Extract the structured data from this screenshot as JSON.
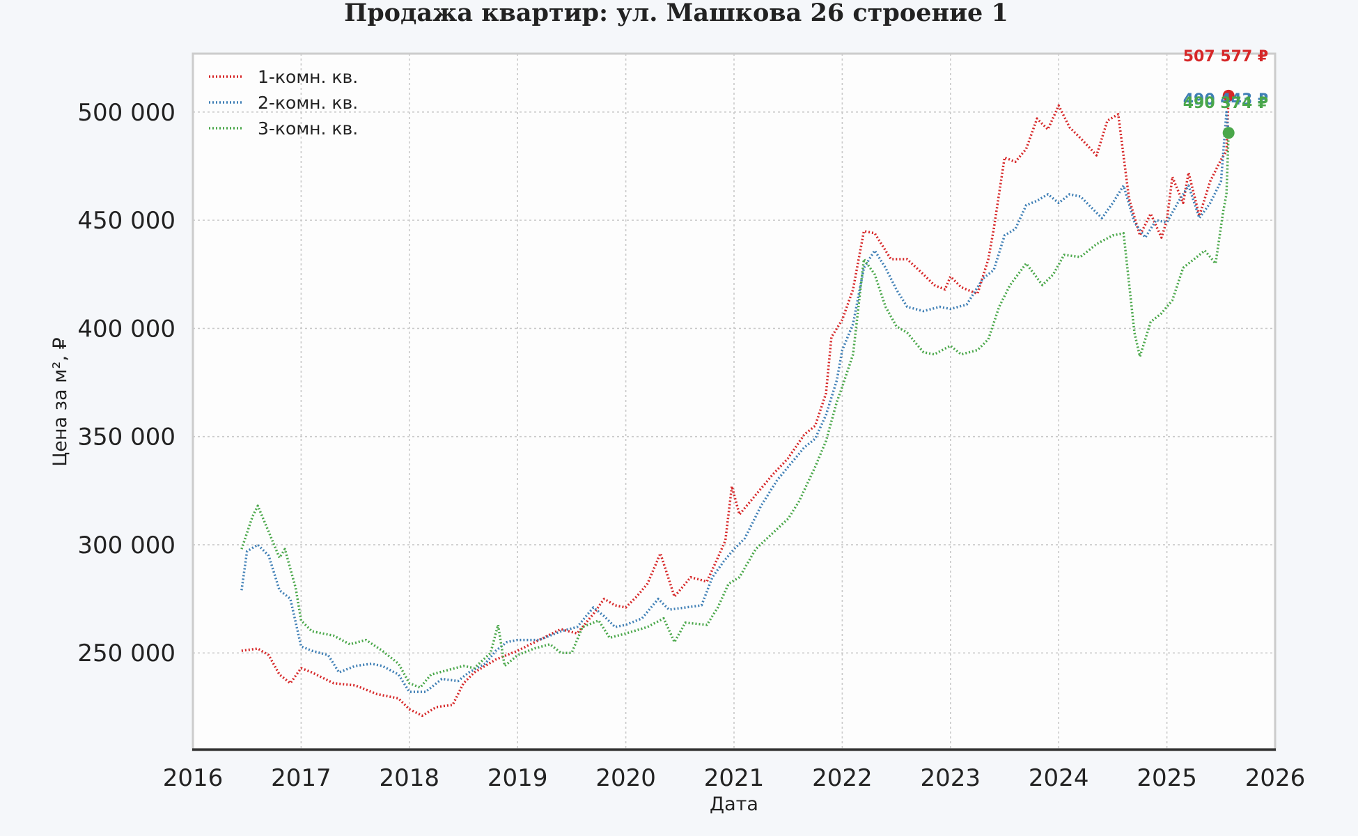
{
  "chart_data": {
    "type": "line",
    "title": "Продажа квартир: ул. Машкова 26 строение 1",
    "xlabel": "Дата",
    "ylabel": "Цена за м², ₽",
    "xlim": [
      2016.0,
      2026.0
    ],
    "ylim": [
      205000,
      527000
    ],
    "x_ticks": [
      2016,
      2017,
      2018,
      2019,
      2020,
      2021,
      2022,
      2023,
      2024,
      2025,
      2026
    ],
    "x_tick_labels": [
      "2016",
      "2017",
      "2018",
      "2019",
      "2020",
      "2021",
      "2022",
      "2023",
      "2024",
      "2025",
      "2026"
    ],
    "y_ticks": [
      250000,
      300000,
      350000,
      400000,
      450000,
      500000
    ],
    "y_tick_labels": [
      "250 000",
      "300 000",
      "350 000",
      "400 000",
      "450 000",
      "500 000"
    ],
    "grid": true,
    "legend_position": "top-left",
    "series": [
      {
        "name": "1-комн. кв.",
        "color": "#d62728",
        "line_style": "dotted",
        "end_label": "507 577 ₽",
        "end_value": 507577,
        "points": [
          [
            2016.45,
            251000
          ],
          [
            2016.6,
            252000
          ],
          [
            2016.7,
            249000
          ],
          [
            2016.8,
            240000
          ],
          [
            2016.9,
            236000
          ],
          [
            2017.0,
            243000
          ],
          [
            2017.1,
            241000
          ],
          [
            2017.3,
            236000
          ],
          [
            2017.5,
            235000
          ],
          [
            2017.7,
            231000
          ],
          [
            2017.9,
            229000
          ],
          [
            2018.0,
            224000
          ],
          [
            2018.12,
            221000
          ],
          [
            2018.25,
            225000
          ],
          [
            2018.4,
            226000
          ],
          [
            2018.5,
            236000
          ],
          [
            2018.6,
            241000
          ],
          [
            2018.8,
            247000
          ],
          [
            2019.0,
            251000
          ],
          [
            2019.2,
            256000
          ],
          [
            2019.4,
            261000
          ],
          [
            2019.55,
            259000
          ],
          [
            2019.7,
            268000
          ],
          [
            2019.8,
            275000
          ],
          [
            2019.9,
            272000
          ],
          [
            2020.0,
            271000
          ],
          [
            2020.1,
            276000
          ],
          [
            2020.2,
            282000
          ],
          [
            2020.32,
            296000
          ],
          [
            2020.45,
            276000
          ],
          [
            2020.6,
            285000
          ],
          [
            2020.75,
            283000
          ],
          [
            2020.85,
            294000
          ],
          [
            2020.92,
            302000
          ],
          [
            2020.98,
            327000
          ],
          [
            2021.05,
            314000
          ],
          [
            2021.2,
            323000
          ],
          [
            2021.35,
            332000
          ],
          [
            2021.5,
            340000
          ],
          [
            2021.65,
            351000
          ],
          [
            2021.75,
            355000
          ],
          [
            2021.85,
            370000
          ],
          [
            2021.9,
            396000
          ],
          [
            2022.0,
            404000
          ],
          [
            2022.1,
            418000
          ],
          [
            2022.2,
            445000
          ],
          [
            2022.3,
            444000
          ],
          [
            2022.45,
            432000
          ],
          [
            2022.6,
            432000
          ],
          [
            2022.75,
            425000
          ],
          [
            2022.85,
            420000
          ],
          [
            2022.95,
            418000
          ],
          [
            2023.0,
            424000
          ],
          [
            2023.1,
            419000
          ],
          [
            2023.25,
            416000
          ],
          [
            2023.35,
            432000
          ],
          [
            2023.4,
            446000
          ],
          [
            2023.5,
            479000
          ],
          [
            2023.6,
            477000
          ],
          [
            2023.7,
            483000
          ],
          [
            2023.8,
            497000
          ],
          [
            2023.9,
            492000
          ],
          [
            2024.0,
            503000
          ],
          [
            2024.1,
            493000
          ],
          [
            2024.2,
            488000
          ],
          [
            2024.35,
            480000
          ],
          [
            2024.45,
            496000
          ],
          [
            2024.55,
            499000
          ],
          [
            2024.65,
            460000
          ],
          [
            2024.75,
            443000
          ],
          [
            2024.85,
            453000
          ],
          [
            2024.95,
            442000
          ],
          [
            2025.0,
            450000
          ],
          [
            2025.05,
            470000
          ],
          [
            2025.15,
            458000
          ],
          [
            2025.2,
            472000
          ],
          [
            2025.3,
            452000
          ],
          [
            2025.4,
            468000
          ],
          [
            2025.5,
            478000
          ],
          [
            2025.55,
            482000
          ],
          [
            2025.57,
            507577
          ]
        ]
      },
      {
        "name": "2-комн. кв.",
        "color": "#3f7fb5",
        "line_style": "dotted",
        "end_label": "490 443 ₽",
        "end_value": 490443,
        "points": [
          [
            2016.45,
            279000
          ],
          [
            2016.5,
            297000
          ],
          [
            2016.6,
            300000
          ],
          [
            2016.7,
            295000
          ],
          [
            2016.8,
            279000
          ],
          [
            2016.9,
            275000
          ],
          [
            2017.0,
            253000
          ],
          [
            2017.1,
            251000
          ],
          [
            2017.25,
            249000
          ],
          [
            2017.35,
            241000
          ],
          [
            2017.5,
            244000
          ],
          [
            2017.65,
            245000
          ],
          [
            2017.75,
            244000
          ],
          [
            2017.9,
            240000
          ],
          [
            2018.0,
            232000
          ],
          [
            2018.15,
            232000
          ],
          [
            2018.3,
            238000
          ],
          [
            2018.45,
            237000
          ],
          [
            2018.55,
            241000
          ],
          [
            2018.7,
            245000
          ],
          [
            2018.8,
            251000
          ],
          [
            2018.9,
            255000
          ],
          [
            2019.0,
            256000
          ],
          [
            2019.2,
            256000
          ],
          [
            2019.4,
            260000
          ],
          [
            2019.55,
            262000
          ],
          [
            2019.7,
            271000
          ],
          [
            2019.8,
            267000
          ],
          [
            2019.9,
            262000
          ],
          [
            2020.0,
            263000
          ],
          [
            2020.15,
            266000
          ],
          [
            2020.3,
            275000
          ],
          [
            2020.4,
            270000
          ],
          [
            2020.55,
            271000
          ],
          [
            2020.7,
            272000
          ],
          [
            2020.8,
            285000
          ],
          [
            2020.9,
            292000
          ],
          [
            2021.0,
            298000
          ],
          [
            2021.1,
            303000
          ],
          [
            2021.25,
            318000
          ],
          [
            2021.4,
            330000
          ],
          [
            2021.55,
            339000
          ],
          [
            2021.65,
            345000
          ],
          [
            2021.75,
            349000
          ],
          [
            2021.85,
            360000
          ],
          [
            2021.95,
            376000
          ],
          [
            2022.0,
            390000
          ],
          [
            2022.1,
            402000
          ],
          [
            2022.2,
            428000
          ],
          [
            2022.3,
            436000
          ],
          [
            2022.4,
            428000
          ],
          [
            2022.5,
            418000
          ],
          [
            2022.6,
            410000
          ],
          [
            2022.75,
            408000
          ],
          [
            2022.9,
            410000
          ],
          [
            2023.0,
            409000
          ],
          [
            2023.15,
            411000
          ],
          [
            2023.3,
            423000
          ],
          [
            2023.4,
            427000
          ],
          [
            2023.5,
            443000
          ],
          [
            2023.6,
            446000
          ],
          [
            2023.7,
            457000
          ],
          [
            2023.8,
            459000
          ],
          [
            2023.9,
            462000
          ],
          [
            2024.0,
            458000
          ],
          [
            2024.1,
            462000
          ],
          [
            2024.2,
            461000
          ],
          [
            2024.3,
            456000
          ],
          [
            2024.4,
            451000
          ],
          [
            2024.5,
            458000
          ],
          [
            2024.6,
            466000
          ],
          [
            2024.7,
            449000
          ],
          [
            2024.8,
            442000
          ],
          [
            2024.9,
            450000
          ],
          [
            2025.0,
            449000
          ],
          [
            2025.1,
            458000
          ],
          [
            2025.2,
            466000
          ],
          [
            2025.3,
            451000
          ],
          [
            2025.4,
            458000
          ],
          [
            2025.5,
            468000
          ],
          [
            2025.55,
            500000
          ],
          [
            2025.57,
            490443
          ]
        ]
      },
      {
        "name": "3-комн. кв.",
        "color": "#4aa74a",
        "line_style": "dotted",
        "end_label": "490 374 ₽",
        "end_value": 490374,
        "points": [
          [
            2016.45,
            298000
          ],
          [
            2016.55,
            313000
          ],
          [
            2016.6,
            318000
          ],
          [
            2016.7,
            306000
          ],
          [
            2016.8,
            294000
          ],
          [
            2016.85,
            298000
          ],
          [
            2016.95,
            280000
          ],
          [
            2017.0,
            265000
          ],
          [
            2017.1,
            260000
          ],
          [
            2017.3,
            258000
          ],
          [
            2017.45,
            254000
          ],
          [
            2017.6,
            256000
          ],
          [
            2017.75,
            251000
          ],
          [
            2017.9,
            245000
          ],
          [
            2018.0,
            236000
          ],
          [
            2018.1,
            234000
          ],
          [
            2018.2,
            240000
          ],
          [
            2018.35,
            242000
          ],
          [
            2018.5,
            244000
          ],
          [
            2018.6,
            243000
          ],
          [
            2018.75,
            250000
          ],
          [
            2018.82,
            263000
          ],
          [
            2018.88,
            244000
          ],
          [
            2019.0,
            249000
          ],
          [
            2019.15,
            252000
          ],
          [
            2019.3,
            254000
          ],
          [
            2019.4,
            250000
          ],
          [
            2019.5,
            250000
          ],
          [
            2019.6,
            262000
          ],
          [
            2019.75,
            265000
          ],
          [
            2019.85,
            257000
          ],
          [
            2020.0,
            259000
          ],
          [
            2020.2,
            262000
          ],
          [
            2020.35,
            266000
          ],
          [
            2020.45,
            255000
          ],
          [
            2020.55,
            264000
          ],
          [
            2020.75,
            263000
          ],
          [
            2020.85,
            271000
          ],
          [
            2020.95,
            282000
          ],
          [
            2021.05,
            285000
          ],
          [
            2021.2,
            298000
          ],
          [
            2021.35,
            305000
          ],
          [
            2021.5,
            312000
          ],
          [
            2021.6,
            320000
          ],
          [
            2021.75,
            336000
          ],
          [
            2021.85,
            348000
          ],
          [
            2021.95,
            366000
          ],
          [
            2022.0,
            373000
          ],
          [
            2022.1,
            388000
          ],
          [
            2022.2,
            432000
          ],
          [
            2022.3,
            425000
          ],
          [
            2022.4,
            410000
          ],
          [
            2022.5,
            401000
          ],
          [
            2022.6,
            398000
          ],
          [
            2022.75,
            389000
          ],
          [
            2022.85,
            388000
          ],
          [
            2023.0,
            392000
          ],
          [
            2023.1,
            388000
          ],
          [
            2023.25,
            390000
          ],
          [
            2023.35,
            395000
          ],
          [
            2023.45,
            410000
          ],
          [
            2023.55,
            420000
          ],
          [
            2023.7,
            430000
          ],
          [
            2023.85,
            420000
          ],
          [
            2023.95,
            425000
          ],
          [
            2024.05,
            434000
          ],
          [
            2024.2,
            433000
          ],
          [
            2024.35,
            439000
          ],
          [
            2024.5,
            443000
          ],
          [
            2024.6,
            444000
          ],
          [
            2024.7,
            398000
          ],
          [
            2024.75,
            387000
          ],
          [
            2024.85,
            403000
          ],
          [
            2024.95,
            407000
          ],
          [
            2025.05,
            413000
          ],
          [
            2025.15,
            428000
          ],
          [
            2025.25,
            432000
          ],
          [
            2025.35,
            436000
          ],
          [
            2025.45,
            430000
          ],
          [
            2025.52,
            454000
          ],
          [
            2025.55,
            462000
          ],
          [
            2025.57,
            490374
          ]
        ]
      }
    ]
  }
}
